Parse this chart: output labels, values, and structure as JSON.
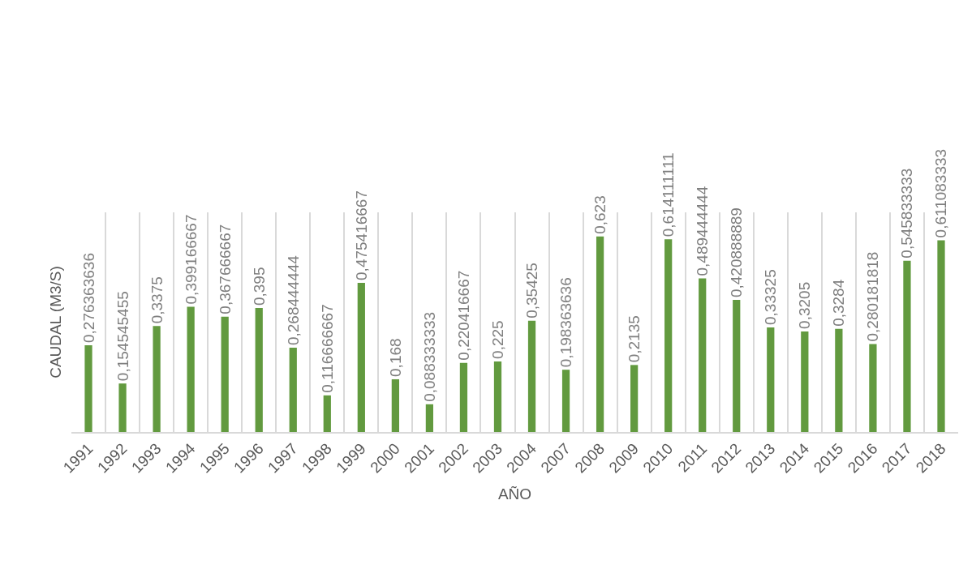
{
  "chart_data": {
    "type": "bar",
    "xlabel": "AÑO",
    "ylabel": "CAUDAL (M3/S)",
    "categories": [
      "1991",
      "1992",
      "1993",
      "1994",
      "1995",
      "1996",
      "1997",
      "1998",
      "1999",
      "2000",
      "2001",
      "2002",
      "2003",
      "2004",
      "2007",
      "2008",
      "2009",
      "2010",
      "2011",
      "2012",
      "2013",
      "2014",
      "2015",
      "2016",
      "2017",
      "2018"
    ],
    "values": [
      0.276363636,
      0.154545455,
      0.3375,
      0.399166667,
      0.367666667,
      0.395,
      0.268444444,
      0.116666667,
      0.475416667,
      0.168,
      0.088333333,
      0.220416667,
      0.225,
      0.35425,
      0.198363636,
      0.623,
      0.2135,
      0.614111111,
      0.489444444,
      0.420888889,
      0.33325,
      0.3205,
      0.3284,
      0.280181818,
      0.545833333,
      0.611083333
    ],
    "value_labels": [
      "0,276363636",
      "0,154545455",
      "0,3375",
      "0,399166667",
      "0,367666667",
      "0,395",
      "0,268444444",
      "0,116666667",
      "0,475416667",
      "0,168",
      "0,088333333",
      "0,220416667",
      "0,225",
      "0,35425",
      "0,198363636",
      "0,623",
      "0,2135",
      "0,614111111",
      "0,489444444",
      "0,420888889",
      "0,33325",
      "0,3205",
      "0,3284",
      "0,280181818",
      "0,545833333",
      "0,611083333"
    ],
    "color": "#629a3f",
    "ylim": [
      0,
      0.7
    ],
    "grid": "x",
    "tick_labels": "x"
  }
}
